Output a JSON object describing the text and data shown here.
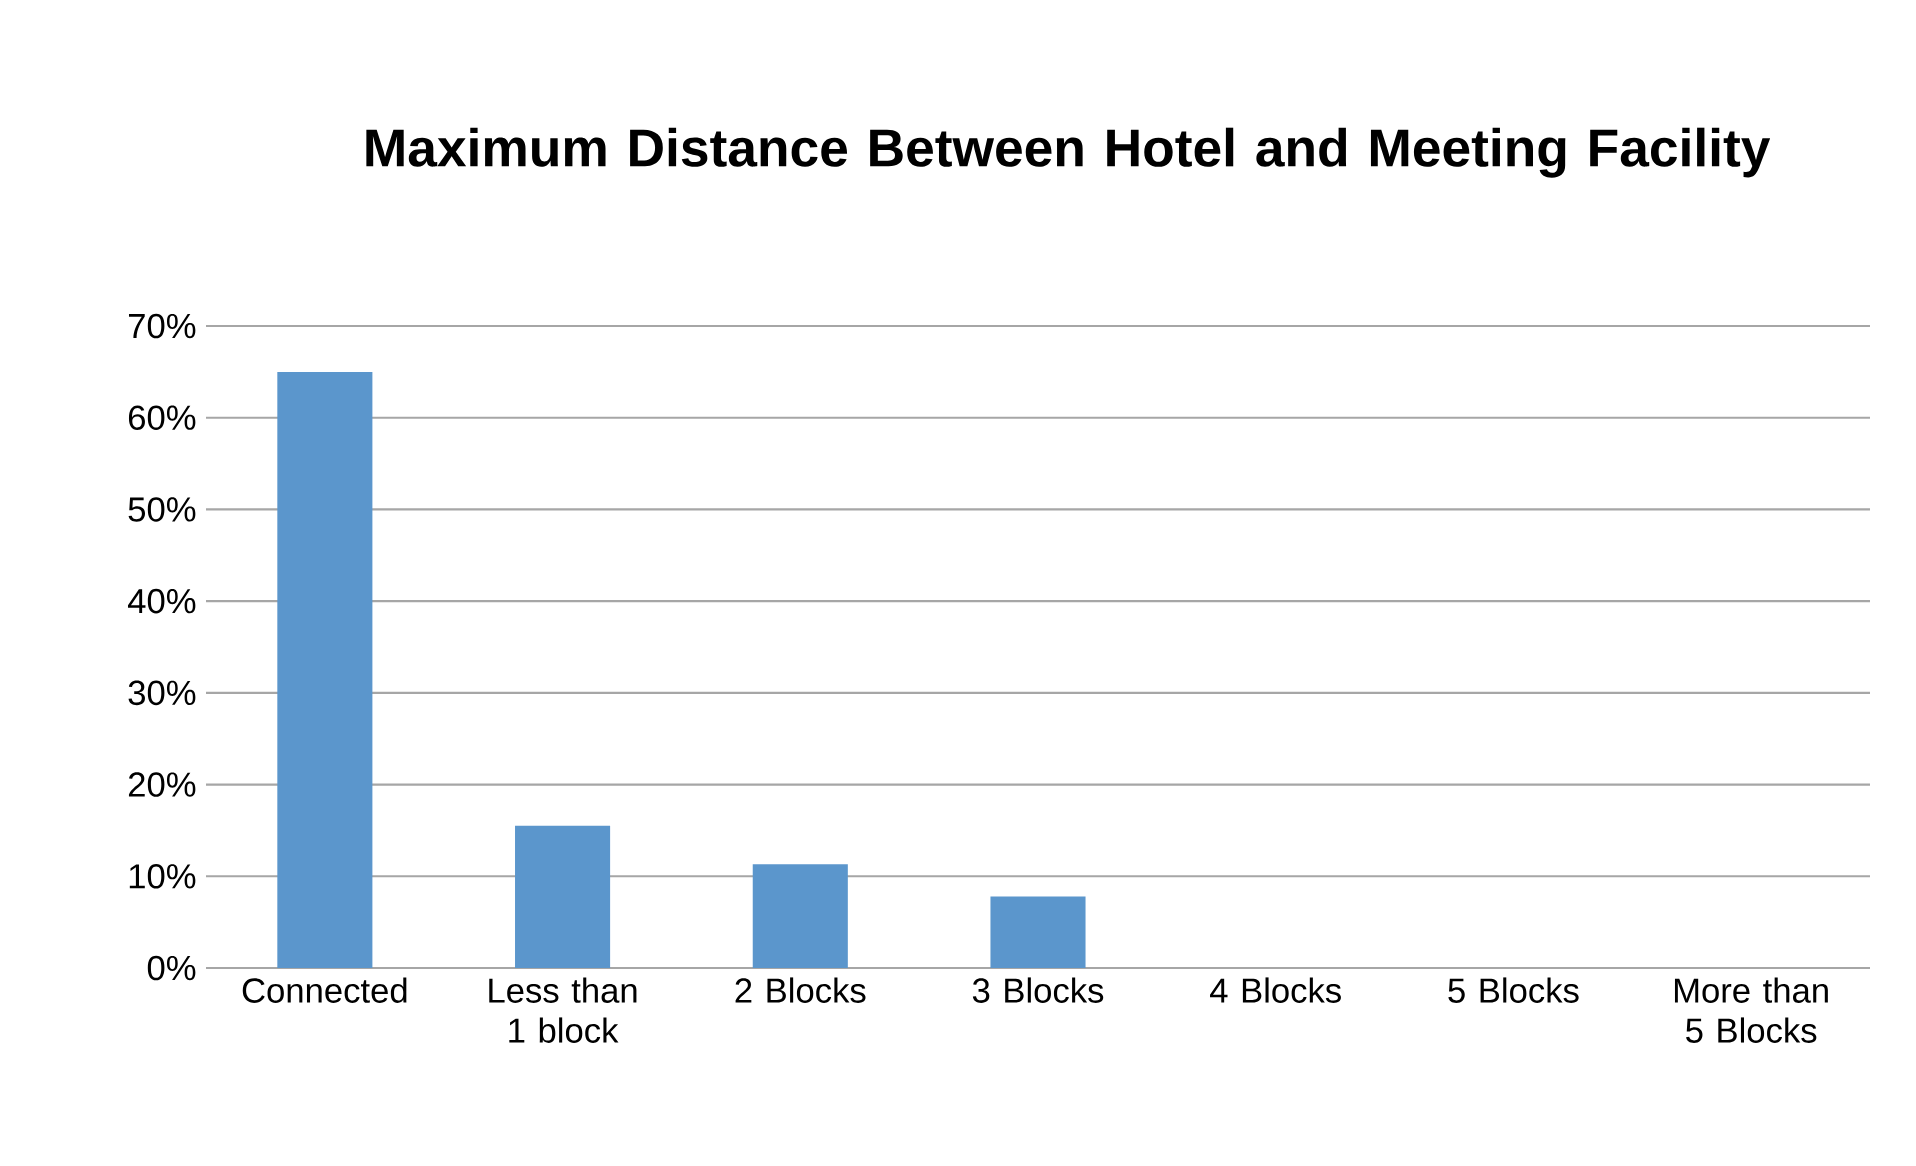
{
  "chart_data": {
    "type": "bar",
    "title": "Maximum Distance Between Hotel and Meeting Facility",
    "categories": [
      "Connected",
      "Less than 1 block",
      "2 Blocks",
      "3 Blocks",
      "4 Blocks",
      "5 Blocks",
      "More than 5 Blocks"
    ],
    "values": [
      65,
      15.5,
      11.3,
      7.8,
      0,
      0,
      0
    ],
    "color": "#5b96cc",
    "ylim": [
      0,
      70
    ],
    "yticks": [
      {
        "value": 0,
        "label": "0%"
      },
      {
        "value": 10,
        "label": "10%"
      },
      {
        "value": 20,
        "label": "20%"
      },
      {
        "value": 30,
        "label": "30%"
      },
      {
        "value": 40,
        "label": "40%"
      },
      {
        "value": 50,
        "label": "50%"
      },
      {
        "value": 60,
        "label": "60%"
      },
      {
        "value": 70,
        "label": "70%"
      }
    ],
    "grid": "y"
  }
}
